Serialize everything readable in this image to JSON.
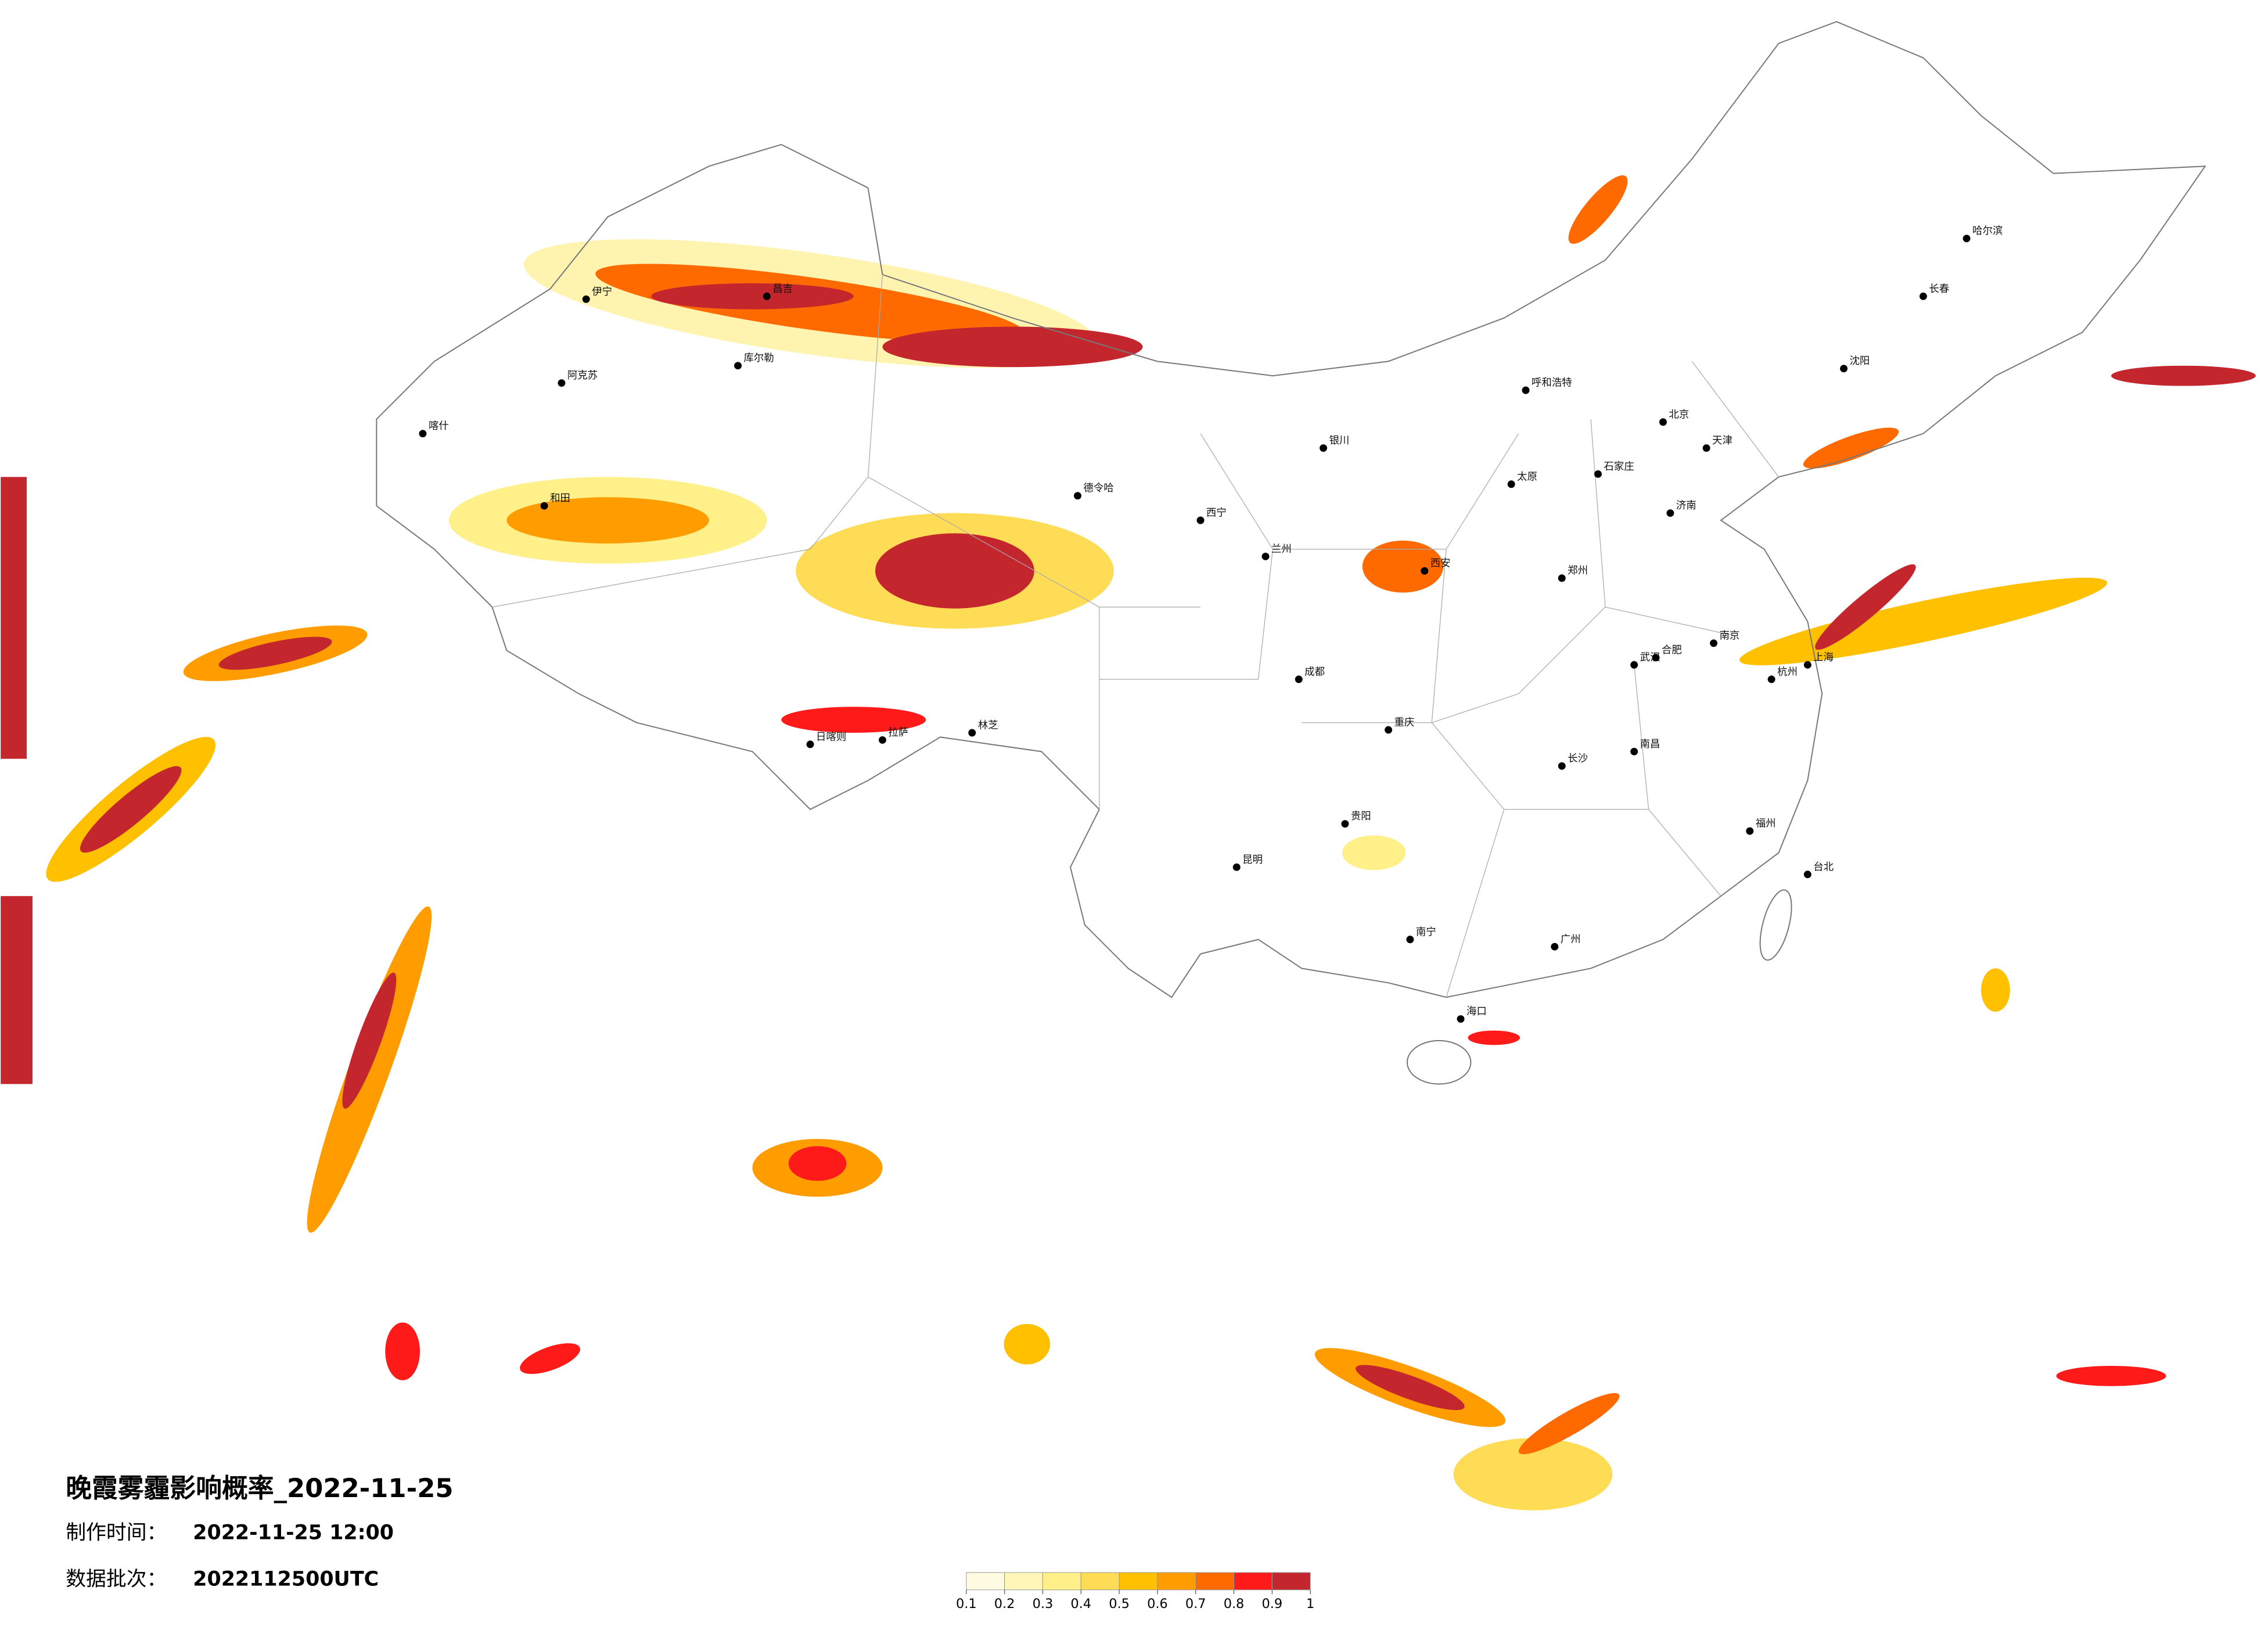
{
  "info": {
    "title": "晚霞雾霾影响概率_2022-11-25",
    "made_label": "制作时间：",
    "made_value": "2022-11-25 12:00",
    "batch_label": "数据批次：",
    "batch_value": "2022112500UTC"
  },
  "legend": {
    "colors": [
      "#fffbe3",
      "#fff6b8",
      "#fff08a",
      "#ffdc55",
      "#ffc000",
      "#ff9d00",
      "#ff6a00",
      "#ff1a1a",
      "#c4262e"
    ],
    "ticks": [
      0.1,
      0.2,
      0.3,
      0.4,
      0.5,
      0.6,
      0.7,
      0.8,
      0.9,
      1
    ]
  },
  "cities": [
    "伊宁",
    "昌吉",
    "阿克苏",
    "喀什",
    "和田",
    "库尔勒",
    "德令哈",
    "日喀则",
    "拉萨",
    "林芝",
    "西宁",
    "兰州",
    "银川",
    "呼和浩特",
    "北京",
    "天津",
    "石家庄",
    "太原",
    "济南",
    "郑州",
    "西安",
    "成都",
    "重庆",
    "武汉",
    "贵阳",
    "昆明",
    "南宁",
    "广州",
    "长沙",
    "南昌",
    "福州",
    "杭州",
    "上海",
    "南京",
    "合肥",
    "沈阳",
    "长春",
    "哈尔滨",
    "海口",
    "台北"
  ]
}
